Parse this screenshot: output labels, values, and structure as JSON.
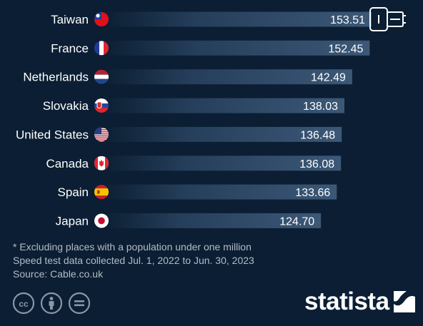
{
  "chart_data": {
    "type": "bar",
    "orientation": "horizontal",
    "categories": [
      "Taiwan",
      "France",
      "Netherlands",
      "Slovakia",
      "United States",
      "Canada",
      "Spain",
      "Japan"
    ],
    "values": [
      153.51,
      152.45,
      142.49,
      138.03,
      136.48,
      136.08,
      133.66,
      124.7
    ],
    "value_labels": [
      "153.51",
      "152.45",
      "142.49",
      "138.03",
      "136.48",
      "136.08",
      "133.66",
      "124.70"
    ],
    "flags": [
      "taiwan-flag",
      "france-flag",
      "netherlands-flag",
      "slovakia-flag",
      "united-states-flag",
      "canada-flag",
      "spain-flag",
      "japan-flag"
    ],
    "bar_color_start": "#0b1e33",
    "bar_color_end": "#3c5877",
    "background": "#0b1e33"
  },
  "notes": {
    "line1": "* Excluding places with a population under one million",
    "line2": "Speed test data collected Jul. 1, 2022 to Jun. 30, 2023",
    "source": "Source: Cable.co.uk"
  },
  "brand": {
    "name": "statista"
  },
  "icons": {
    "top_right": "broadband-connector-icon",
    "license": [
      "cc-icon",
      "attribution-icon",
      "no-derivatives-icon"
    ]
  }
}
